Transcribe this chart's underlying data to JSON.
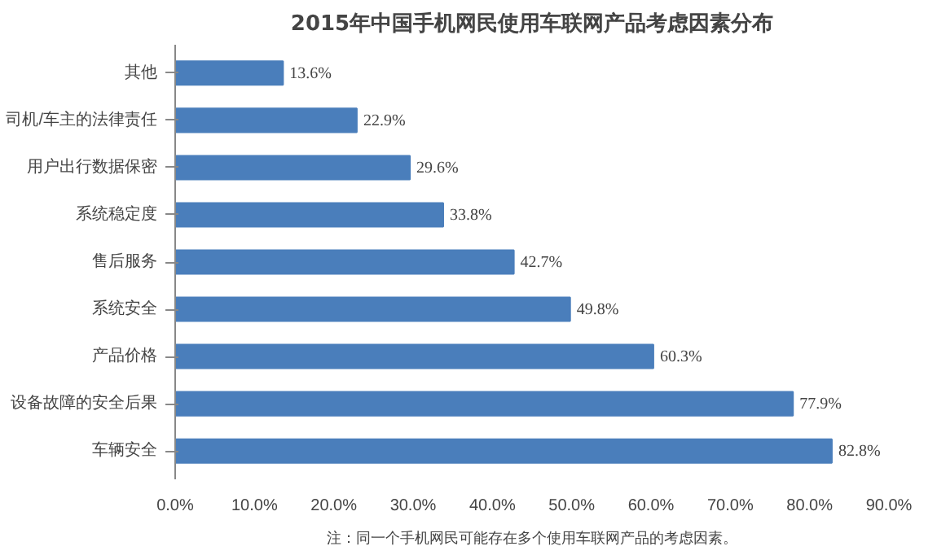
{
  "chart_data": {
    "type": "bar",
    "orientation": "horizontal",
    "title": "2015年中国手机网民使用车联网产品考虑因素分布",
    "categories": [
      "其他",
      "司机/车主的法律责任",
      "用户出行数据保密",
      "系统稳定度",
      "售后服务",
      "系统安全",
      "产品价格",
      "设备故障的安全后果",
      "车辆安全"
    ],
    "values": [
      13.6,
      22.9,
      29.6,
      33.8,
      42.7,
      49.8,
      60.3,
      77.9,
      82.8
    ],
    "value_labels": [
      "13.6%",
      "22.9%",
      "29.6%",
      "33.8%",
      "42.7%",
      "49.8%",
      "60.3%",
      "77.9%",
      "82.8%"
    ],
    "color": "#4a7ebb",
    "xlim": [
      0,
      90
    ],
    "xticks": [
      {
        "value": 0,
        "label": "0.0%"
      },
      {
        "value": 10,
        "label": "10.0%"
      },
      {
        "value": 20,
        "label": "20.0%"
      },
      {
        "value": 30,
        "label": "30.0%"
      },
      {
        "value": 40,
        "label": "40.0%"
      },
      {
        "value": 50,
        "label": "50.0%"
      },
      {
        "value": 60,
        "label": "60.0%"
      },
      {
        "value": 70,
        "label": "70.0%"
      },
      {
        "value": 80,
        "label": "80.0%"
      },
      {
        "value": 90,
        "label": "90.0%"
      }
    ],
    "grid": false,
    "annotations": [
      "注：同一个手机网民可能存在多个使用车联网产品的考虑因素。"
    ]
  }
}
